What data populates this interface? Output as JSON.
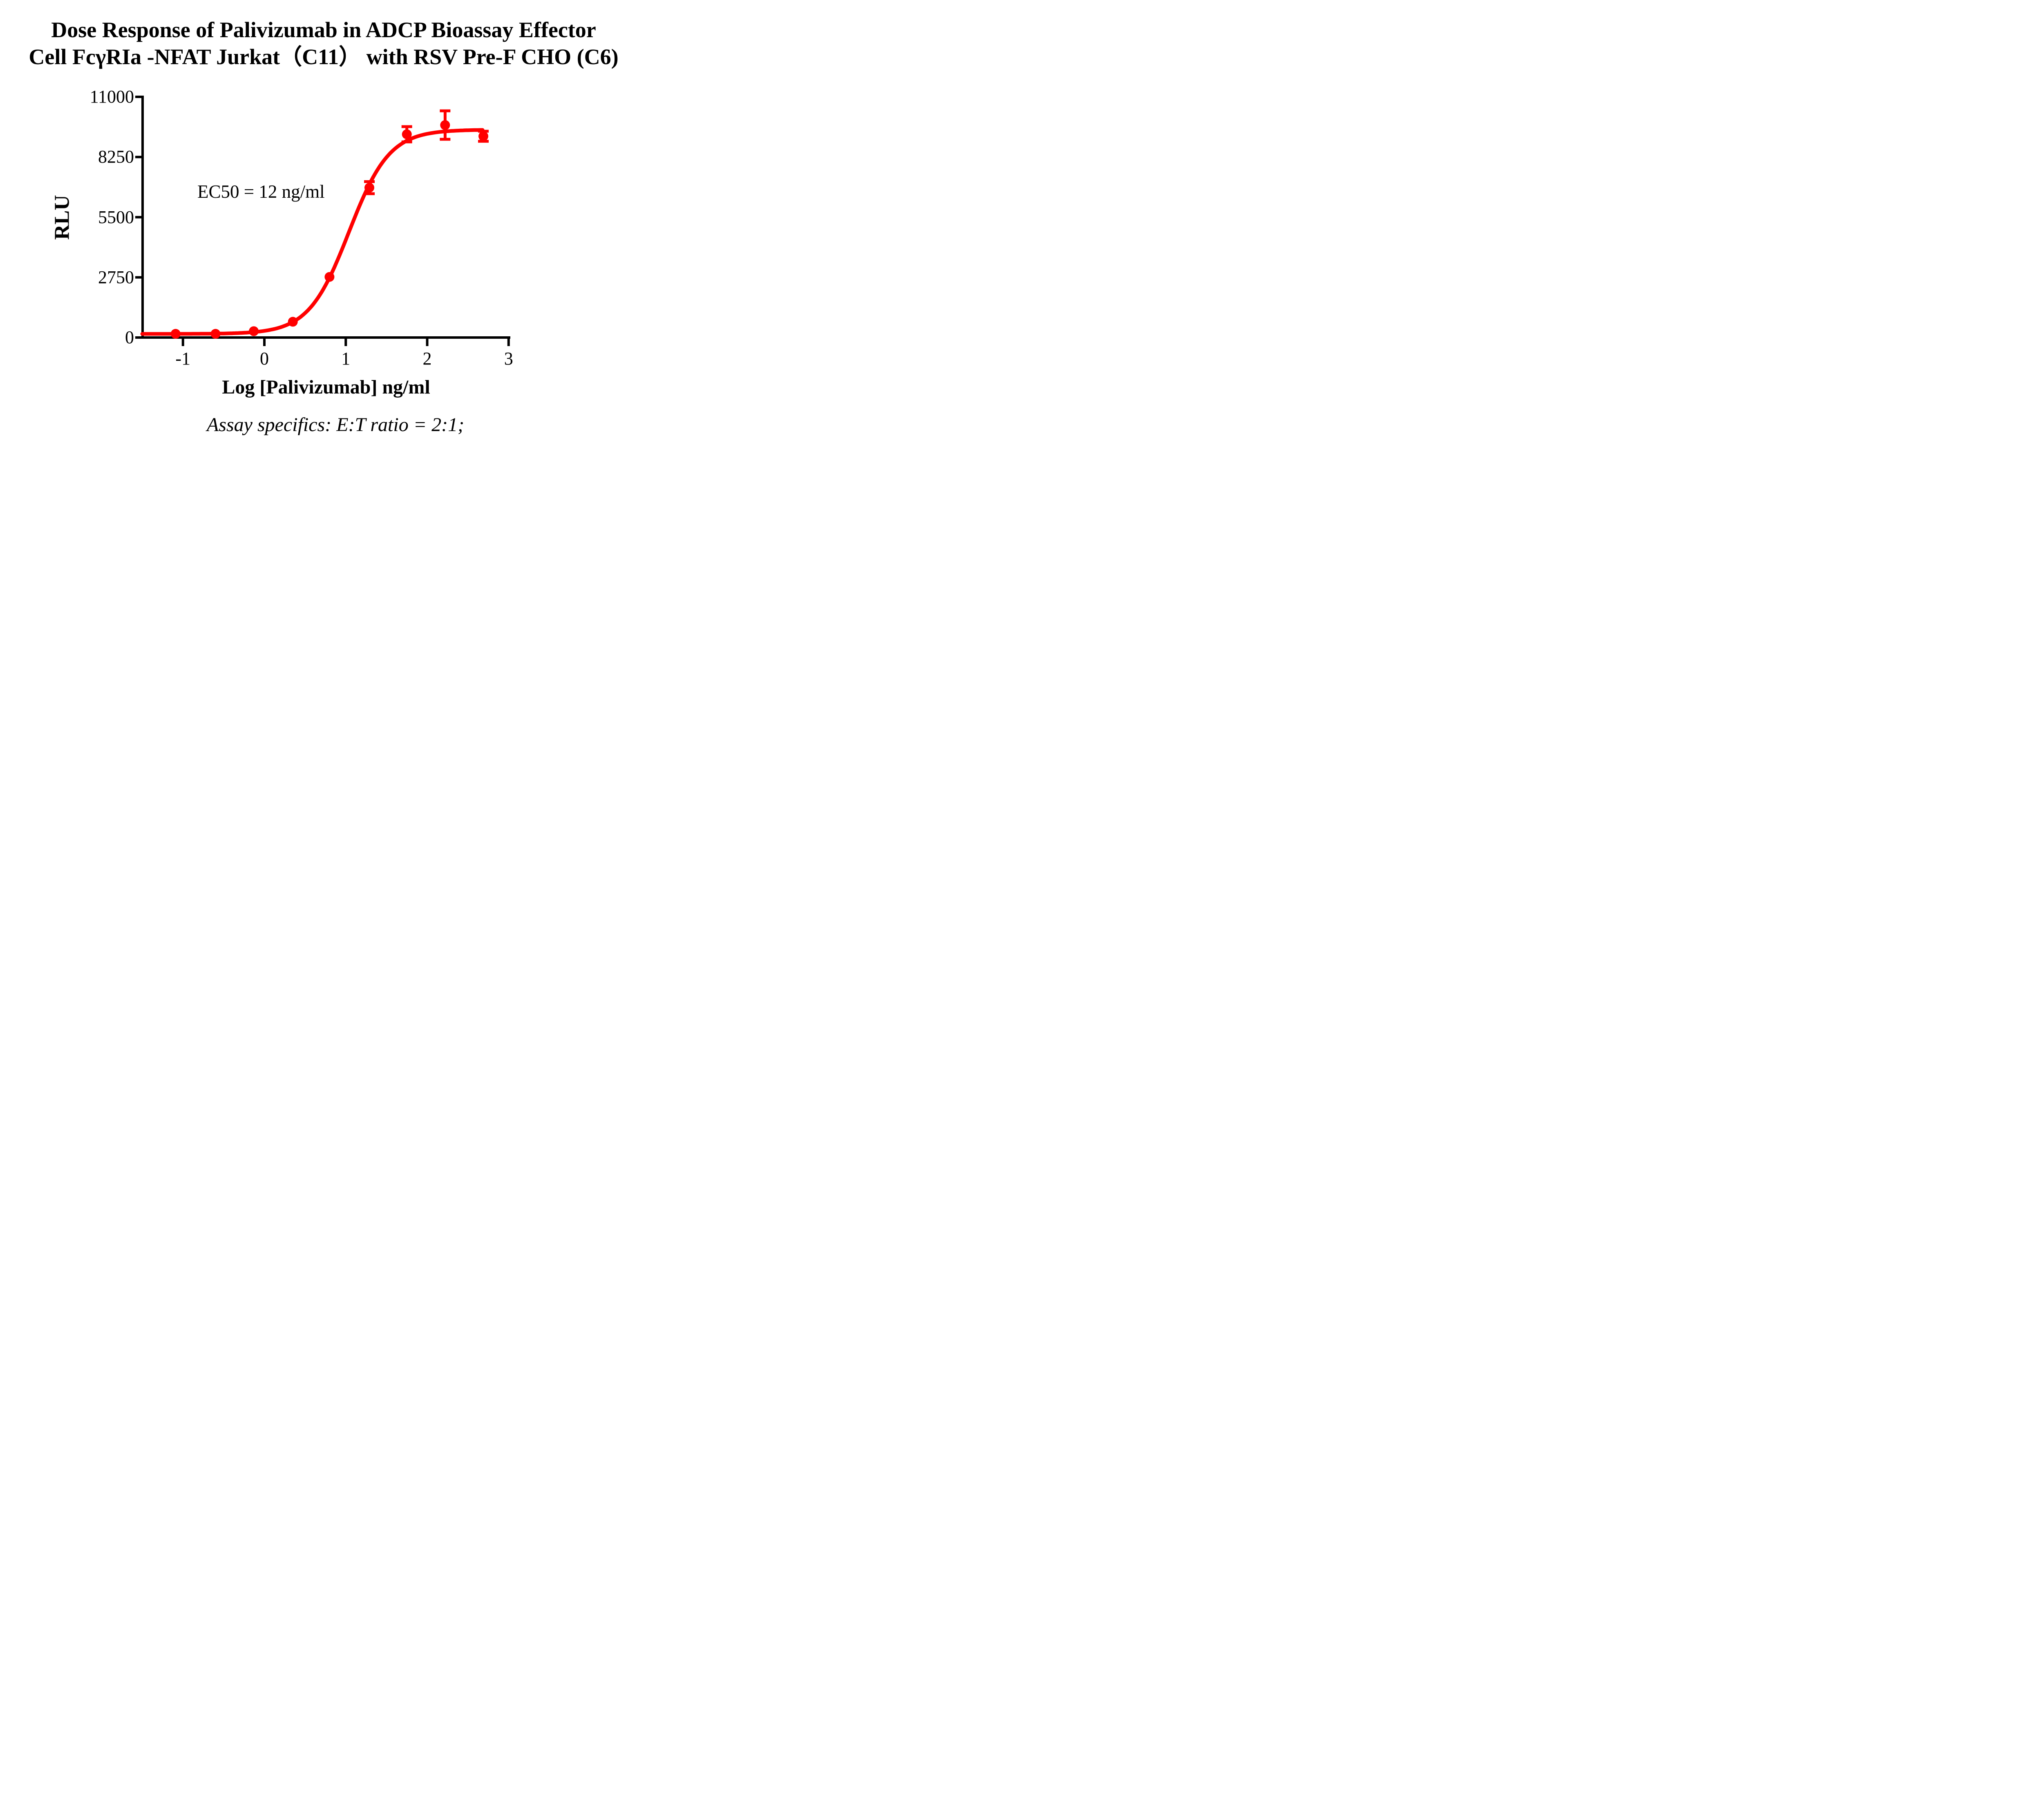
{
  "title": {
    "line1": "Dose Response of Palivizumab in ADCP Bioassay Effector",
    "line2": "Cell FcγRIa -NFAT Jurkat（C11） with RSV Pre-F CHO (C6)"
  },
  "annotation": {
    "ec50_text": "EC50 = 12 ng/ml"
  },
  "footer": {
    "text": "Assay specifics: E:T ratio = 2:1;"
  },
  "colors": {
    "curve": "#FF0000",
    "axis": "#000000"
  },
  "chart_data": {
    "type": "scatter",
    "title": "Dose Response of Palivizumab in ADCP Bioassay Effector Cell FcγRIa -NFAT Jurkat（C11） with RSV Pre-F CHO (C6)",
    "xlabel": "Log [Palivizumab] ng/ml",
    "ylabel": "RLU",
    "xlim": [
      -1.5,
      3.02
    ],
    "ylim": [
      0,
      11000
    ],
    "x_ticks": [
      -1,
      0,
      1,
      2,
      3
    ],
    "x_tick_labels": [
      "-1",
      "0",
      "1",
      "2",
      "3"
    ],
    "y_ticks": [
      0,
      2750,
      5500,
      8250,
      11000
    ],
    "y_tick_labels": [
      "0",
      "2750",
      "5500",
      "8250",
      "11000"
    ],
    "grid": false,
    "legend": "none",
    "series": [
      {
        "name": "Palivizumab",
        "marker": "circle",
        "log_x": [
          -1.09,
          -0.6,
          -0.13,
          0.35,
          0.8,
          1.29,
          1.75,
          2.22,
          2.69
        ],
        "rlu": [
          170,
          170,
          290,
          720,
          2770,
          6850,
          9290,
          9710,
          9200
        ],
        "rlu_err": [
          0,
          0,
          0,
          0,
          0,
          275,
          350,
          650,
          230
        ]
      }
    ],
    "fit": {
      "model": "4PL sigmoid",
      "bottom": 165,
      "top": 9500,
      "log_ec50": 1.04,
      "hill": 1.75,
      "ec50_label": "EC50 = 12 ng/ml",
      "x_start": -1.5,
      "x_end": 2.69
    }
  }
}
